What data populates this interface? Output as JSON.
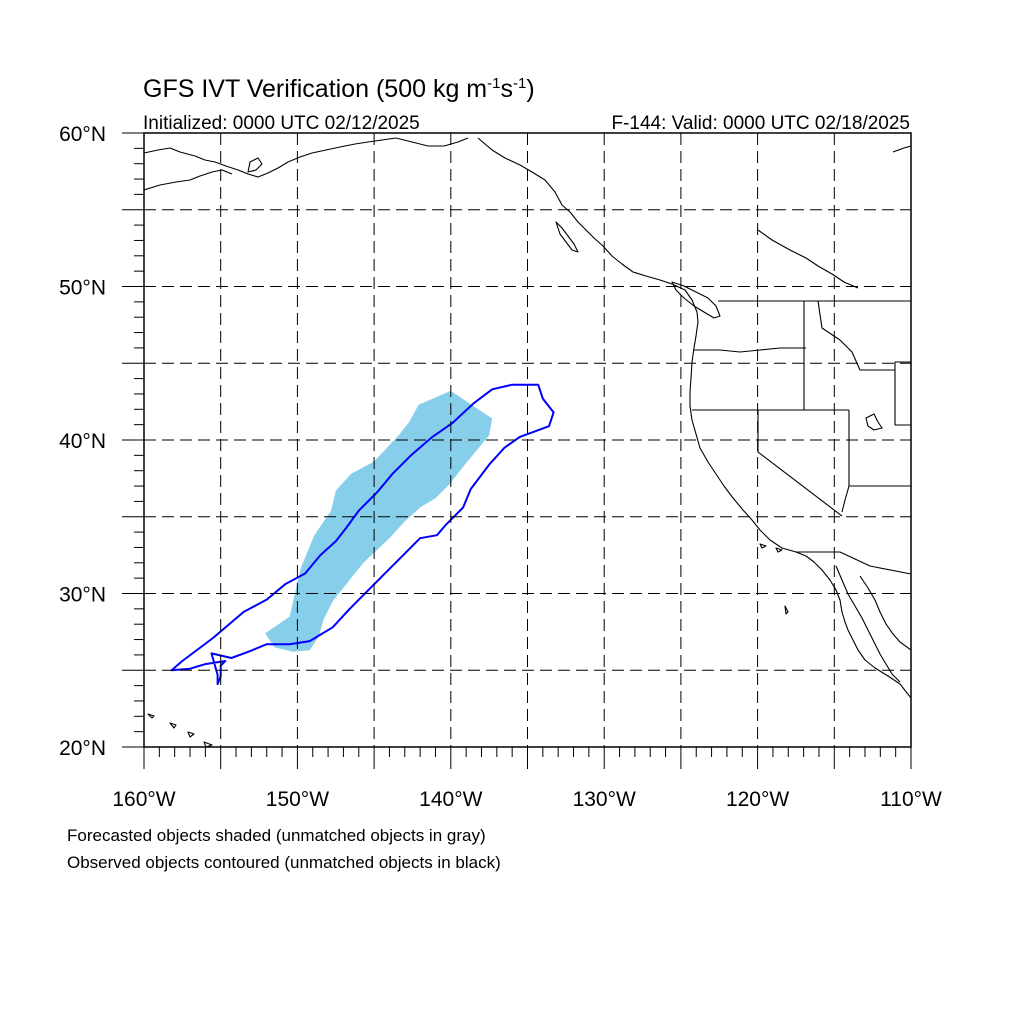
{
  "figure": {
    "title_prefix": "GFS IVT Verification (500 kg m",
    "title_sup1": "-1",
    "title_mid": "s",
    "title_sup2": "-1",
    "title_suffix": ")",
    "initialized": "Initialized: 0000 UTC 02/12/2025",
    "valid": "F-144: Valid: 0000 UTC 02/18/2025"
  },
  "axes": {
    "lon_range": [
      -160,
      -110
    ],
    "lat_range": [
      20,
      60
    ],
    "grid_lons": [
      -155,
      -150,
      -145,
      -140,
      -135,
      -130,
      -125,
      -120,
      -115
    ],
    "grid_lats": [
      25,
      30,
      35,
      40,
      45,
      50,
      55
    ],
    "x_ticks": [
      {
        "value": -160,
        "label": "160°W"
      },
      {
        "value": -150,
        "label": "150°W"
      },
      {
        "value": -140,
        "label": "140°W"
      },
      {
        "value": -130,
        "label": "130°W"
      },
      {
        "value": -120,
        "label": "120°W"
      },
      {
        "value": -110,
        "label": "110°W"
      }
    ],
    "y_ticks": [
      {
        "value": 20,
        "label": "20°N"
      },
      {
        "value": 30,
        "label": "30°N"
      },
      {
        "value": 40,
        "label": "40°N"
      },
      {
        "value": 50,
        "label": "50°N"
      },
      {
        "value": 60,
        "label": "60°N"
      }
    ]
  },
  "objects": {
    "forecast_shaded": {
      "color": "#87ceeb",
      "polygon": [
        [
          -151.5,
          26.5
        ],
        [
          -152.1,
          27.4
        ],
        [
          -150.5,
          28.5
        ],
        [
          -149.8,
          31.6
        ],
        [
          -148.9,
          33.8
        ],
        [
          -147.8,
          35.4
        ],
        [
          -147.5,
          36.7
        ],
        [
          -146.5,
          37.8
        ],
        [
          -145.0,
          38.6
        ],
        [
          -143.4,
          40.3
        ],
        [
          -142.7,
          41.2
        ],
        [
          -142.1,
          42.3
        ],
        [
          -140.0,
          43.2
        ],
        [
          -138.5,
          42.2
        ],
        [
          -137.3,
          41.4
        ],
        [
          -137.5,
          40.3
        ],
        [
          -139.0,
          38.5
        ],
        [
          -140.1,
          37.1
        ],
        [
          -141.0,
          36.2
        ],
        [
          -142.0,
          35.6
        ],
        [
          -143.0,
          34.7
        ],
        [
          -144.0,
          33.6
        ],
        [
          -145.7,
          32.0
        ],
        [
          -146.9,
          30.5
        ],
        [
          -147.7,
          29.5
        ],
        [
          -148.3,
          28.3
        ],
        [
          -148.6,
          27.2
        ],
        [
          -149.2,
          26.3
        ],
        [
          -150.3,
          26.2
        ]
      ]
    },
    "observed_contour": {
      "color": "#0000ff",
      "polygon": [
        [
          -158.2,
          25.0
        ],
        [
          -157.5,
          25.6
        ],
        [
          -155.5,
          27.1
        ],
        [
          -153.5,
          28.8
        ],
        [
          -152.0,
          29.6
        ],
        [
          -150.8,
          30.6
        ],
        [
          -149.5,
          31.3
        ],
        [
          -148.5,
          32.5
        ],
        [
          -147.5,
          33.4
        ],
        [
          -146.8,
          34.3
        ],
        [
          -146.0,
          35.4
        ],
        [
          -144.8,
          36.6
        ],
        [
          -143.8,
          37.8
        ],
        [
          -142.6,
          39.0
        ],
        [
          -141.2,
          40.2
        ],
        [
          -139.9,
          41.1
        ],
        [
          -138.5,
          42.4
        ],
        [
          -137.3,
          43.3
        ],
        [
          -136.0,
          43.6
        ],
        [
          -134.3,
          43.6
        ],
        [
          -134.0,
          42.7
        ],
        [
          -133.3,
          41.8
        ],
        [
          -133.6,
          40.9
        ],
        [
          -135.5,
          40.2
        ],
        [
          -136.5,
          39.5
        ],
        [
          -137.5,
          38.4
        ],
        [
          -138.7,
          36.8
        ],
        [
          -139.2,
          35.6
        ],
        [
          -140.3,
          34.5
        ],
        [
          -140.9,
          33.8
        ],
        [
          -142.0,
          33.6
        ],
        [
          -143.0,
          32.6
        ],
        [
          -144.5,
          31.1
        ],
        [
          -145.3,
          30.3
        ],
        [
          -146.6,
          29.0
        ],
        [
          -147.7,
          27.8
        ],
        [
          -149.2,
          26.9
        ],
        [
          -150.5,
          26.7
        ],
        [
          -152.0,
          26.7
        ],
        [
          -153.2,
          26.2
        ],
        [
          -154.3,
          25.8
        ],
        [
          -155.6,
          26.1
        ],
        [
          -155.2,
          24.7
        ],
        [
          -155.2,
          24.1
        ],
        [
          -155.0,
          24.6
        ],
        [
          -155.0,
          25.3
        ],
        [
          -154.7,
          25.6
        ],
        [
          -156.0,
          25.4
        ],
        [
          -157.0,
          25.1
        ]
      ]
    }
  },
  "captions": [
    "Forecasted objects shaded (unmatched objects in gray)",
    "Observed objects contoured (unmatched objects in black)"
  ]
}
